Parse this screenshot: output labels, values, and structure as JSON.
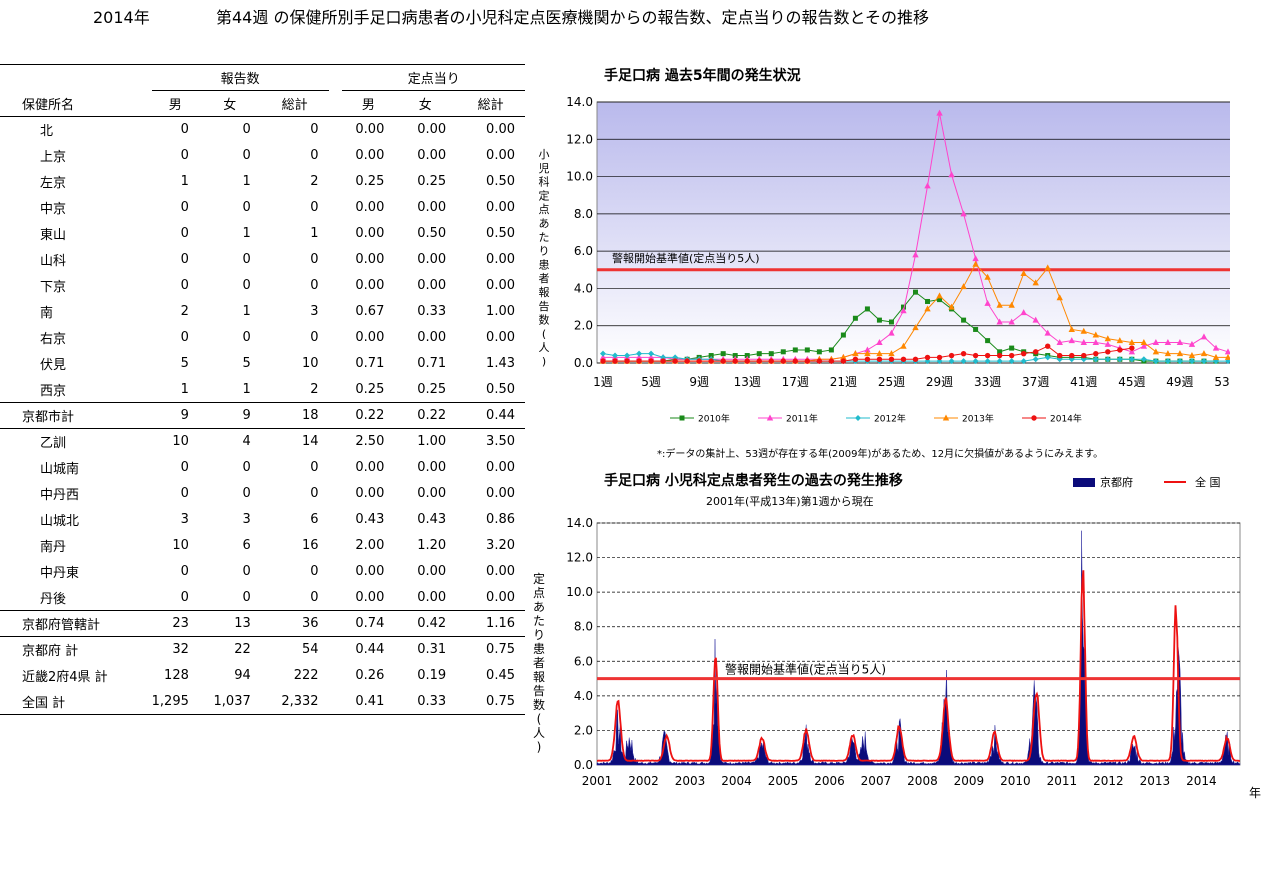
{
  "header": {
    "year": "2014年",
    "title": "第44週 の保健所別手足口病患者の小児科定点医療機関からの報告数、定点当りの報告数とその推移"
  },
  "table": {
    "group_reports": "報告数",
    "group_per_site": "定点当り",
    "col_station": "保健所名",
    "col_male": "男",
    "col_female": "女",
    "col_total": "総計",
    "rows": [
      {
        "name": "北",
        "m": "0",
        "f": "0",
        "t": "0",
        "pm": "0.00",
        "pf": "0.00",
        "pt": "0.00",
        "agg": false,
        "line": false
      },
      {
        "name": "上京",
        "m": "0",
        "f": "0",
        "t": "0",
        "pm": "0.00",
        "pf": "0.00",
        "pt": "0.00",
        "agg": false,
        "line": false
      },
      {
        "name": "左京",
        "m": "1",
        "f": "1",
        "t": "2",
        "pm": "0.25",
        "pf": "0.25",
        "pt": "0.50",
        "agg": false,
        "line": false
      },
      {
        "name": "中京",
        "m": "0",
        "f": "0",
        "t": "0",
        "pm": "0.00",
        "pf": "0.00",
        "pt": "0.00",
        "agg": false,
        "line": false
      },
      {
        "name": "東山",
        "m": "0",
        "f": "1",
        "t": "1",
        "pm": "0.00",
        "pf": "0.50",
        "pt": "0.50",
        "agg": false,
        "line": false
      },
      {
        "name": "山科",
        "m": "0",
        "f": "0",
        "t": "0",
        "pm": "0.00",
        "pf": "0.00",
        "pt": "0.00",
        "agg": false,
        "line": false
      },
      {
        "name": "下京",
        "m": "0",
        "f": "0",
        "t": "0",
        "pm": "0.00",
        "pf": "0.00",
        "pt": "0.00",
        "agg": false,
        "line": false
      },
      {
        "name": "南",
        "m": "2",
        "f": "1",
        "t": "3",
        "pm": "0.67",
        "pf": "0.33",
        "pt": "1.00",
        "agg": false,
        "line": false
      },
      {
        "name": "右京",
        "m": "0",
        "f": "0",
        "t": "0",
        "pm": "0.00",
        "pf": "0.00",
        "pt": "0.00",
        "agg": false,
        "line": false
      },
      {
        "name": "伏見",
        "m": "5",
        "f": "5",
        "t": "10",
        "pm": "0.71",
        "pf": "0.71",
        "pt": "1.43",
        "agg": false,
        "line": false
      },
      {
        "name": "西京",
        "m": "1",
        "f": "1",
        "t": "2",
        "pm": "0.25",
        "pf": "0.25",
        "pt": "0.50",
        "agg": false,
        "line": true
      },
      {
        "name": "京都市計",
        "m": "9",
        "f": "9",
        "t": "18",
        "pm": "0.22",
        "pf": "0.22",
        "pt": "0.44",
        "agg": true,
        "line": true
      },
      {
        "name": "乙訓",
        "m": "10",
        "f": "4",
        "t": "14",
        "pm": "2.50",
        "pf": "1.00",
        "pt": "3.50",
        "agg": false,
        "line": false
      },
      {
        "name": "山城南",
        "m": "0",
        "f": "0",
        "t": "0",
        "pm": "0.00",
        "pf": "0.00",
        "pt": "0.00",
        "agg": false,
        "line": false
      },
      {
        "name": "中丹西",
        "m": "0",
        "f": "0",
        "t": "0",
        "pm": "0.00",
        "pf": "0.00",
        "pt": "0.00",
        "agg": false,
        "line": false
      },
      {
        "name": "山城北",
        "m": "3",
        "f": "3",
        "t": "6",
        "pm": "0.43",
        "pf": "0.43",
        "pt": "0.86",
        "agg": false,
        "line": false
      },
      {
        "name": "南丹",
        "m": "10",
        "f": "6",
        "t": "16",
        "pm": "2.00",
        "pf": "1.20",
        "pt": "3.20",
        "agg": false,
        "line": false
      },
      {
        "name": "中丹東",
        "m": "0",
        "f": "0",
        "t": "0",
        "pm": "0.00",
        "pf": "0.00",
        "pt": "0.00",
        "agg": false,
        "line": false
      },
      {
        "name": "丹後",
        "m": "0",
        "f": "0",
        "t": "0",
        "pm": "0.00",
        "pf": "0.00",
        "pt": "0.00",
        "agg": false,
        "line": true
      },
      {
        "name": "京都府管轄計",
        "m": "23",
        "f": "13",
        "t": "36",
        "pm": "0.74",
        "pf": "0.42",
        "pt": "1.16",
        "agg": true,
        "line": true
      },
      {
        "name": "京都府 計",
        "m": "32",
        "f": "22",
        "t": "54",
        "pm": "0.44",
        "pf": "0.31",
        "pt": "0.75",
        "agg": true,
        "line": false
      },
      {
        "name": "近畿2府4県 計",
        "m": "128",
        "f": "94",
        "t": "222",
        "pm": "0.26",
        "pf": "0.19",
        "pt": "0.45",
        "agg": true,
        "line": false
      },
      {
        "name": "全国 計",
        "m": "1,295",
        "f": "1,037",
        "t": "2,332",
        "pm": "0.41",
        "pf": "0.33",
        "pt": "0.75",
        "agg": true,
        "line": true
      }
    ]
  },
  "chart_top_title": "手足口病 過去5年間の発生状況",
  "chart_note": "*:データの集計上、53週が存在する年(2009年)があるため、12月に欠損値があるようにみえます。",
  "chart_bottom_title": "手足口病 小児科定点患者発生の過去の発生推移",
  "chart_bottom_subtitle": "2001年(平成13年)第1週から現在",
  "chart_data": [
    {
      "type": "line",
      "title": "手足口病 過去5年間の発生状況",
      "ylabel": "小児科定点あたり患者報告数(人)",
      "ylim": [
        0,
        14
      ],
      "yticks": [
        "0.0",
        "2.0",
        "4.0",
        "6.0",
        "8.0",
        "10.0",
        "12.0",
        "14.0"
      ],
      "xticks": [
        "1週",
        "5週",
        "9週",
        "13週",
        "17週",
        "21週",
        "25週",
        "29週",
        "33週",
        "37週",
        "41週",
        "45週",
        "49週",
        "53週"
      ],
      "grid": true,
      "legend": "bottom",
      "threshold": {
        "label": "警報開始基準値(定点当り5人)",
        "value": 5,
        "color": "#ee3333"
      },
      "series": [
        {
          "name": "2010年",
          "color": "#1a8a1a",
          "marker": "square",
          "values": [
            0.1,
            0.1,
            0.1,
            0.1,
            0.1,
            0.1,
            0.2,
            0.2,
            0.3,
            0.4,
            0.5,
            0.4,
            0.4,
            0.5,
            0.5,
            0.6,
            0.7,
            0.7,
            0.6,
            0.7,
            1.5,
            2.4,
            2.9,
            2.3,
            2.2,
            3.0,
            3.8,
            3.3,
            3.4,
            2.9,
            2.3,
            1.8,
            1.2,
            0.6,
            0.8,
            0.6,
            0.5,
            0.4,
            0.3,
            0.3,
            0.3,
            0.2,
            0.2,
            0.2,
            0.2,
            0.1,
            0.1,
            0.1,
            0.1,
            0.1,
            0.1,
            0.1
          ]
        },
        {
          "name": "2011年",
          "color": "#ff44cc",
          "marker": "triangle",
          "values": [
            0.3,
            0.3,
            0.3,
            0.3,
            0.3,
            0.3,
            0.2,
            0.2,
            0.2,
            0.2,
            0.2,
            0.2,
            0.2,
            0.2,
            0.2,
            0.2,
            0.2,
            0.2,
            0.2,
            0.2,
            0.3,
            0.5,
            0.7,
            1.1,
            1.6,
            2.8,
            5.8,
            9.5,
            13.4,
            10.1,
            8.0,
            5.6,
            3.2,
            2.2,
            2.2,
            2.7,
            2.3,
            1.6,
            1.1,
            1.2,
            1.1,
            1.1,
            1.0,
            0.8,
            0.6,
            0.9,
            1.1,
            1.1,
            1.1,
            1.0,
            1.4,
            0.8,
            0.6
          ]
        },
        {
          "name": "2012年",
          "color": "#22bbcc",
          "marker": "diamond",
          "values": [
            0.5,
            0.4,
            0.4,
            0.5,
            0.5,
            0.3,
            0.3,
            0.2,
            0.2,
            0.2,
            0.1,
            0.1,
            0.1,
            0.1,
            0.1,
            0.1,
            0.1,
            0.1,
            0.1,
            0.1,
            0.1,
            0.1,
            0.1,
            0.1,
            0.1,
            0.1,
            0.1,
            0.1,
            0.1,
            0.1,
            0.1,
            0.1,
            0.1,
            0.1,
            0.1,
            0.1,
            0.2,
            0.3,
            0.2,
            0.2,
            0.2,
            0.2,
            0.2,
            0.2,
            0.2,
            0.2,
            0.1,
            0.1,
            0.1,
            0.1,
            0.1,
            0.1,
            0.1
          ]
        },
        {
          "name": "2013年",
          "color": "#ff8800",
          "marker": "triangle",
          "values": [
            0.1,
            0.1,
            0.1,
            0.1,
            0.1,
            0.1,
            0.1,
            0.1,
            0.1,
            0.1,
            0.1,
            0.1,
            0.1,
            0.1,
            0.1,
            0.1,
            0.1,
            0.1,
            0.2,
            0.2,
            0.3,
            0.5,
            0.5,
            0.5,
            0.5,
            0.9,
            1.9,
            2.9,
            3.6,
            3.0,
            4.1,
            5.3,
            4.6,
            3.1,
            3.1,
            4.8,
            4.3,
            5.1,
            3.5,
            1.8,
            1.7,
            1.5,
            1.3,
            1.2,
            1.1,
            1.1,
            0.6,
            0.5,
            0.5,
            0.4,
            0.5,
            0.3,
            0.3
          ]
        },
        {
          "name": "2014年",
          "color": "#ee1111",
          "marker": "circle",
          "values": [
            0.1,
            0.1,
            0.1,
            0.1,
            0.1,
            0.1,
            0.1,
            0.1,
            0.1,
            0.1,
            0.1,
            0.1,
            0.1,
            0.1,
            0.1,
            0.1,
            0.1,
            0.1,
            0.1,
            0.1,
            0.1,
            0.2,
            0.2,
            0.2,
            0.2,
            0.2,
            0.2,
            0.3,
            0.3,
            0.4,
            0.5,
            0.4,
            0.4,
            0.4,
            0.4,
            0.5,
            0.6,
            0.9,
            0.4,
            0.4,
            0.4,
            0.5,
            0.6,
            0.7,
            0.8
          ]
        }
      ]
    },
    {
      "type": "area",
      "title": "手足口病 小児科定点患者発生の過去の発生推移",
      "subtitle": "2001年(平成13年)第1週から現在",
      "ylabel": "定点あたり患者報告数(人)",
      "xlabel": "年",
      "ylim": [
        0,
        14
      ],
      "yticks": [
        "0.0",
        "2.0",
        "4.0",
        "6.0",
        "8.0",
        "10.0",
        "12.0",
        "14.0"
      ],
      "xticks": [
        "2001",
        "2002",
        "2003",
        "2004",
        "2005",
        "2006",
        "2007",
        "2008",
        "2009",
        "2010",
        "2011",
        "2012",
        "2013",
        "2014"
      ],
      "grid": true,
      "legend": "top-right",
      "threshold": {
        "label": "警報開始基準値(定点当り5人)",
        "value": 5,
        "color": "#ee3333"
      },
      "series": [
        {
          "name": "京都府",
          "color": "#0b0b7a",
          "peaks": [
            [
              2001.45,
              2.0
            ],
            [
              2001.7,
              1.4
            ],
            [
              2002.45,
              1.2
            ],
            [
              2003.55,
              6.5
            ],
            [
              2004.55,
              1.0
            ],
            [
              2005.5,
              1.5
            ],
            [
              2006.5,
              1.2
            ],
            [
              2006.75,
              1.3
            ],
            [
              2007.5,
              1.7
            ],
            [
              2008.5,
              4.0
            ],
            [
              2009.55,
              1.4
            ],
            [
              2010.4,
              3.7
            ],
            [
              2011.45,
              13.3
            ],
            [
              2012.55,
              0.9
            ],
            [
              2013.5,
              5.0
            ],
            [
              2014.55,
              1.2
            ]
          ]
        },
        {
          "name": "全 国",
          "color": "#ee1111",
          "peaks": [
            [
              2001.45,
              3.4
            ],
            [
              2002.5,
              1.4
            ],
            [
              2003.55,
              6.3
            ],
            [
              2004.55,
              1.3
            ],
            [
              2005.5,
              1.8
            ],
            [
              2006.5,
              1.5
            ],
            [
              2007.5,
              2.0
            ],
            [
              2008.5,
              3.5
            ],
            [
              2009.55,
              1.6
            ],
            [
              2010.45,
              4.0
            ],
            [
              2011.45,
              11.0
            ],
            [
              2012.55,
              1.4
            ],
            [
              2013.45,
              8.8
            ],
            [
              2014.55,
              1.3
            ]
          ]
        }
      ]
    }
  ]
}
